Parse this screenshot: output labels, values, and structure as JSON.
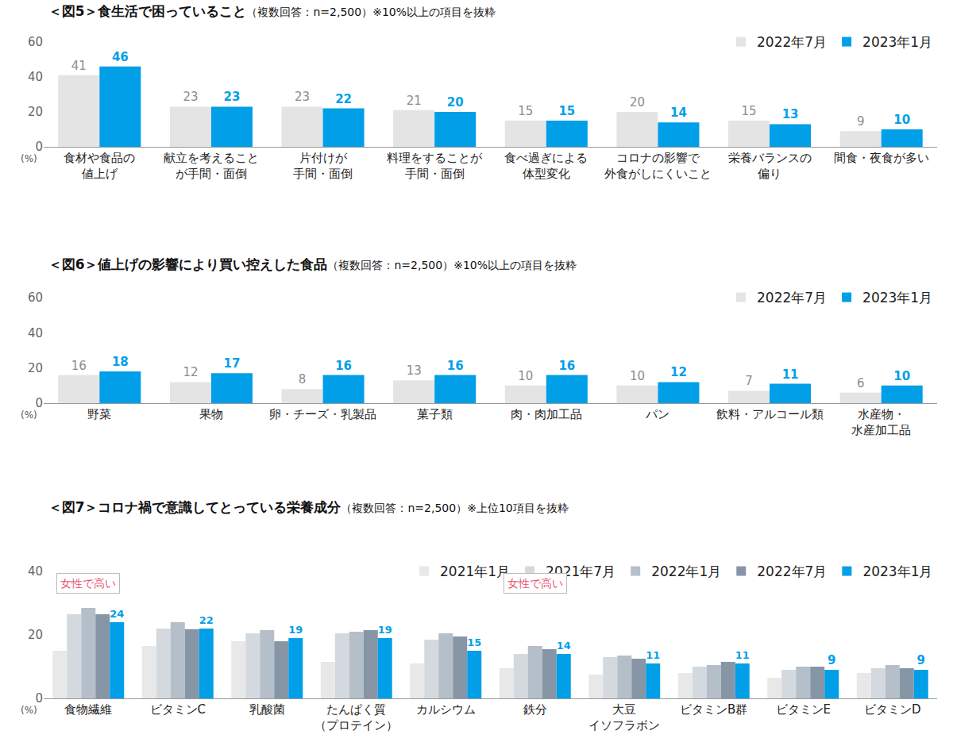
{
  "chart_data": [
    {
      "type": "bar",
      "title": "＜図5＞食生活で困っていること",
      "subtitle": "（複数回答：n=2,500）※10%以上の項目を抜粋",
      "ylabel": "(%)",
      "categories": [
        "食材や食品の\n値上げ",
        "献立を考えること\nが手間・面倒",
        "片付けが\n手間・面倒",
        "料理をすることが\n手間・面倒",
        "食べ過ぎによる\n体型変化",
        "コロナの影響で\n外食がしにくいこと",
        "栄養バランスの\n偏り",
        "間食・夜食が多い"
      ],
      "series": [
        {
          "name": "2022年7月",
          "color": "#e4e4e4",
          "data_labels": true,
          "values": [
            41,
            23,
            23,
            21,
            15,
            20,
            15,
            9
          ]
        },
        {
          "name": "2023年1月",
          "color": "#009fe8",
          "data_labels": true,
          "values": [
            46,
            23,
            22,
            20,
            15,
            14,
            13,
            10
          ]
        }
      ],
      "ylim": [
        0,
        60
      ],
      "yticks": [
        0,
        20,
        40,
        60
      ],
      "grid": false,
      "legend": "top right"
    },
    {
      "type": "bar",
      "title": "＜図6＞値上げの影響により買い控えした食品",
      "subtitle": "（複数回答：n=2,500）※10%以上の項目を抜粋",
      "ylabel": "(%)",
      "categories": [
        "野菜",
        "果物",
        "卵・チーズ・乳製品",
        "菓子類",
        "肉・肉加工品",
        "パン",
        "飲料・アルコール類",
        "水産物・\n水産加工品"
      ],
      "series": [
        {
          "name": "2022年7月",
          "color": "#e4e4e4",
          "data_labels": true,
          "values": [
            16,
            12,
            8,
            13,
            10,
            10,
            7,
            6
          ]
        },
        {
          "name": "2023年1月",
          "color": "#009fe8",
          "data_labels": true,
          "values": [
            18,
            17,
            16,
            16,
            16,
            12,
            11,
            10
          ]
        }
      ],
      "ylim": [
        0,
        60
      ],
      "yticks": [
        0,
        20,
        40,
        60
      ],
      "grid": false,
      "legend": "top right"
    },
    {
      "type": "bar",
      "title": "＜図7＞コロナ禍で意識してとっている栄養成分",
      "subtitle": "（複数回答：n=2,500）※上位10項目を抜粋",
      "ylabel": "(%)",
      "categories": [
        "食物繊維",
        "ビタミンC",
        "乳酸菌",
        "たんぱく質\n（プロテイン）",
        "カルシウム",
        "鉄分",
        "大豆\nイソフラボン",
        "ビタミンB群",
        "ビタミンE",
        "ビタミンD"
      ],
      "series": [
        {
          "name": "2021年1月",
          "color": "#e8e8e8",
          "values": [
            15,
            16.5,
            18,
            11.5,
            11,
            9.5,
            7.5,
            8,
            6.5,
            8
          ]
        },
        {
          "name": "2021年7月",
          "color": "#d3d9df",
          "values": [
            26.5,
            22,
            20.5,
            20.5,
            18.5,
            14,
            13,
            10,
            9,
            9.5
          ]
        },
        {
          "name": "2022年1月",
          "color": "#b5bfc9",
          "values": [
            28.5,
            24,
            21.5,
            21,
            20.5,
            16.5,
            13.5,
            10.5,
            10,
            10.5
          ]
        },
        {
          "name": "2022年7月",
          "color": "#8796a6",
          "values": [
            26.5,
            21.8,
            18,
            21.5,
            19.5,
            15.5,
            12.5,
            11.5,
            10,
            9.5
          ]
        },
        {
          "name": "2023年1月",
          "color": "#009fe8",
          "data_labels": true,
          "values": [
            24,
            22,
            19,
            19,
            15,
            14,
            11,
            11,
            9,
            9
          ]
        }
      ],
      "annotations": [
        {
          "text": "女性で高い",
          "category": "食物繊維"
        },
        {
          "text": "女性で高い",
          "category": "鉄分"
        }
      ],
      "ylim": [
        0,
        40
      ],
      "yticks": [
        0,
        20,
        40
      ],
      "grid": false,
      "legend": "top right"
    }
  ]
}
